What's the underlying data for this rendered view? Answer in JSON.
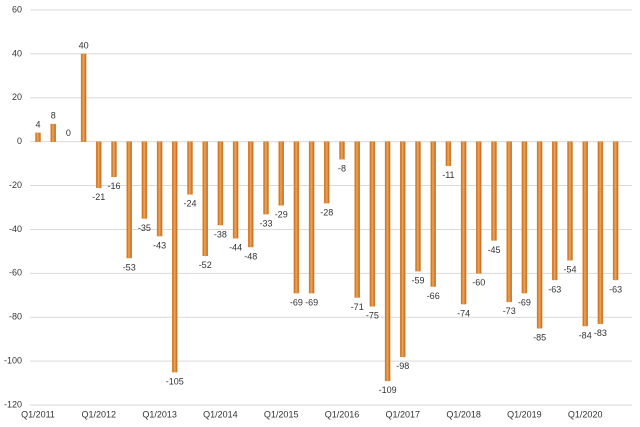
{
  "chart_data": {
    "type": "bar",
    "categories": [
      "Q1/2011",
      null,
      null,
      null,
      "Q1/2012",
      null,
      null,
      null,
      "Q1/2013",
      null,
      null,
      null,
      "Q1/2014",
      null,
      null,
      null,
      "Q1/2015",
      null,
      null,
      null,
      "Q1/2016",
      null,
      null,
      null,
      "Q1/2017",
      null,
      null,
      null,
      "Q1/2018",
      null,
      null,
      null,
      "Q1/2019",
      null,
      null,
      null,
      "Q1/2020",
      null,
      null
    ],
    "values": [
      4,
      8,
      0,
      40,
      -21,
      -16,
      -53,
      -35,
      -43,
      -105,
      -24,
      -52,
      -38,
      -44,
      -48,
      -33,
      -29,
      -69,
      -69,
      -28,
      -8,
      -71,
      -75,
      -109,
      -98,
      -59,
      -66,
      -11,
      -74,
      -60,
      -45,
      -73,
      -69,
      -85,
      -63,
      -54,
      -84,
      -83,
      -63
    ],
    "color": "#e08a2e",
    "ylim": [
      -120,
      60
    ],
    "yticks": [
      -120,
      -100,
      -80,
      -60,
      -40,
      -20,
      0,
      20,
      40,
      60
    ],
    "grid": true
  }
}
